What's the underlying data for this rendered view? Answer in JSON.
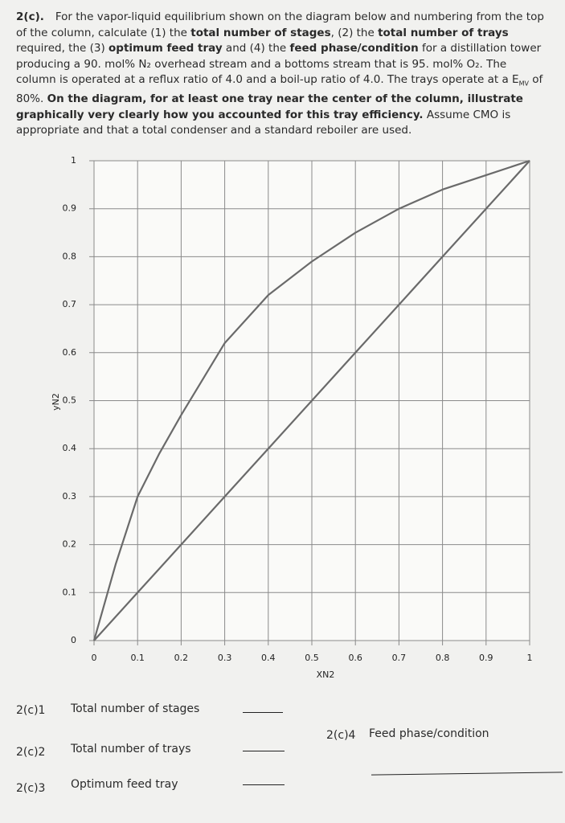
{
  "problem": {
    "segments": [
      "2(c).",
      "For the vapor-liquid equilibrium shown on the diagram below and numbering from the top of the column, calculate (1) the ",
      "total number of stages",
      ", (2) the ",
      "total number of trays",
      " required, the (3) ",
      "optimum feed tray",
      " and (4) the ",
      "feed phase/condition",
      " for a distillation tower producing a 90. mol% N₂ overhead stream and a bottoms stream that is 95. mol% O₂. The column is operated at a reflux ratio of 4.0 and a boil-up ratio of 4.0. The trays operate at a E",
      "MV",
      " of 80%. ",
      "On the diagram, for at least one tray near the center of the column, illustrate graphically very clearly how you accounted for this tray efficiency.",
      " Assume CMO is appropriate and that a total condenser and a standard reboiler are used."
    ]
  },
  "chart_data": {
    "type": "line",
    "x_label": "XN2",
    "y_label": "yN2",
    "x": [
      0,
      0.05,
      0.1,
      0.15,
      0.2,
      0.3,
      0.4,
      0.5,
      0.6,
      0.7,
      0.8,
      0.9,
      1
    ],
    "series": [
      {
        "color": "#6a6a6a",
        "values": [
          0,
          0.16,
          0.3,
          0.39,
          0.47,
          0.62,
          0.72,
          0.79,
          0.85,
          0.9,
          0.94,
          0.97,
          1
        ]
      },
      {
        "color": "#6a6a6a",
        "values": [
          0,
          0.05,
          0.1,
          0.15,
          0.2,
          0.3,
          0.4,
          0.5,
          0.6,
          0.7,
          0.8,
          0.9,
          1
        ]
      }
    ],
    "xlim": [
      0,
      1
    ],
    "ylim": [
      0,
      1
    ],
    "xticks": [
      0,
      0.1,
      0.2,
      0.3,
      0.4,
      0.5,
      0.6,
      0.7,
      0.8,
      0.9,
      1
    ],
    "yticks": [
      0,
      0.1,
      0.2,
      0.3,
      0.4,
      0.5,
      0.6,
      0.7,
      0.8,
      0.9,
      1
    ],
    "grid": true
  },
  "answers": [
    {
      "id": "2(c)1",
      "label": "Total number of stages"
    },
    {
      "id": "2(c)2",
      "label": "Total number of trays"
    },
    {
      "id": "2(c)3",
      "label": "Optimum feed tray"
    },
    {
      "id": "2(c)4",
      "label": "Feed phase/condition"
    }
  ]
}
